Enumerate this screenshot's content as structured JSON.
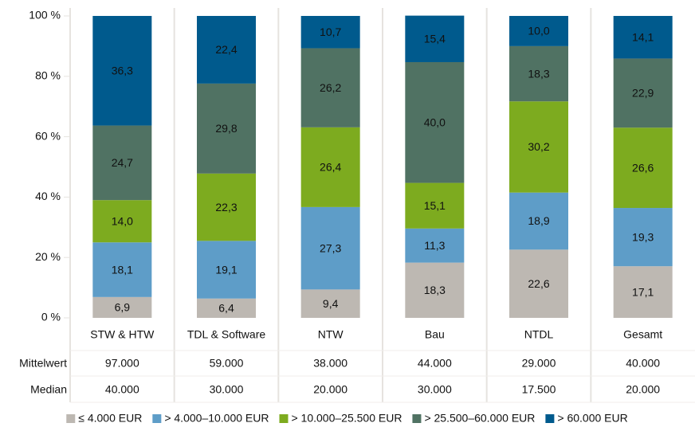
{
  "chart_data": {
    "type": "stacked-bar",
    "categories": [
      "STW & HTW",
      "TDL & Software",
      "NTW",
      "Bau",
      "NTDL",
      "Gesamt"
    ],
    "series": [
      {
        "name": "≤ 4.000 EUR",
        "color": "#bdb8b2",
        "values": [
          6.9,
          6.4,
          9.4,
          18.3,
          22.6,
          17.1
        ],
        "value_labels": [
          "6,9",
          "6,4",
          "9,4",
          "18,3",
          "22,6",
          "17,1"
        ]
      },
      {
        "name": "> 4.000–10.000 EUR",
        "color": "#5e9dc8",
        "values": [
          18.1,
          19.1,
          27.3,
          11.3,
          18.9,
          19.3
        ],
        "value_labels": [
          "18,1",
          "19,1",
          "27,3",
          "11,3",
          "18,9",
          "19,3"
        ]
      },
      {
        "name": "> 10.000–25.500 EUR",
        "color": "#7dab1f",
        "values": [
          14.0,
          22.3,
          26.4,
          15.1,
          30.2,
          26.6
        ],
        "value_labels": [
          "14,0",
          "22,3",
          "26,4",
          "15,1",
          "30,2",
          "26,6"
        ]
      },
      {
        "name": "> 25.500–60.000 EUR",
        "color": "#507263",
        "values": [
          24.7,
          29.8,
          26.2,
          40.0,
          18.3,
          22.9
        ],
        "value_labels": [
          "24,7",
          "29,8",
          "26,2",
          "40,0",
          "18,3",
          "22,9"
        ]
      },
      {
        "name": "> 60.000 EUR",
        "color": "#005a8d",
        "values": [
          36.3,
          22.4,
          10.7,
          15.4,
          10.0,
          14.1
        ],
        "value_labels": [
          "36,3",
          "22,4",
          "10,7",
          "15,4",
          "10,0",
          "14,1"
        ]
      }
    ],
    "ylim": [
      0,
      100
    ],
    "yticks": [
      {
        "value": 0,
        "label": "0 %"
      },
      {
        "value": 20,
        "label": "20 %"
      },
      {
        "value": 40,
        "label": "40 %"
      },
      {
        "value": 60,
        "label": "60 %"
      },
      {
        "value": 80,
        "label": "80 %"
      },
      {
        "value": 100,
        "label": "100 %"
      }
    ],
    "table": {
      "rows": [
        {
          "label": "Mittelwert",
          "cells": [
            "97.000",
            "59.000",
            "38.000",
            "44.000",
            "29.000",
            "40.000"
          ]
        },
        {
          "label": "Median",
          "cells": [
            "40.000",
            "30.000",
            "20.000",
            "30.000",
            "17.500",
            "20.000"
          ]
        }
      ]
    }
  }
}
